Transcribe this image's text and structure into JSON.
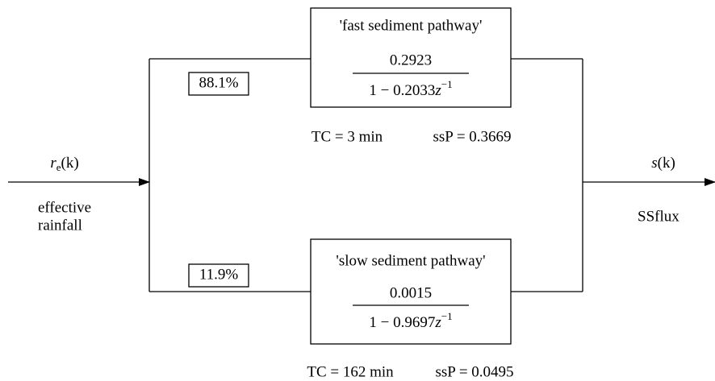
{
  "input": {
    "symbol": "r",
    "subscript": "e",
    "argument": "(k)",
    "description": [
      "effective",
      "rainfall"
    ]
  },
  "output": {
    "symbol": "s",
    "argument": "(k)",
    "description": "SSflux"
  },
  "pathways": [
    {
      "share": "88.1%",
      "title": "'fast sediment pathway'",
      "numerator": "0.2923",
      "denominator": {
        "constant": "1 − 0.2033",
        "variable": "z",
        "exponent": "−1"
      },
      "time_constant": "TC = 3 min",
      "ssp": "ssP = 0.3669"
    },
    {
      "share": "11.9%",
      "title": "'slow sediment pathway'",
      "numerator": "0.0015",
      "denominator": {
        "constant": "1 − 0.9697",
        "variable": "z",
        "exponent": "−1"
      },
      "time_constant": "TC = 162 min",
      "ssp": "ssP = 0.0495"
    }
  ]
}
